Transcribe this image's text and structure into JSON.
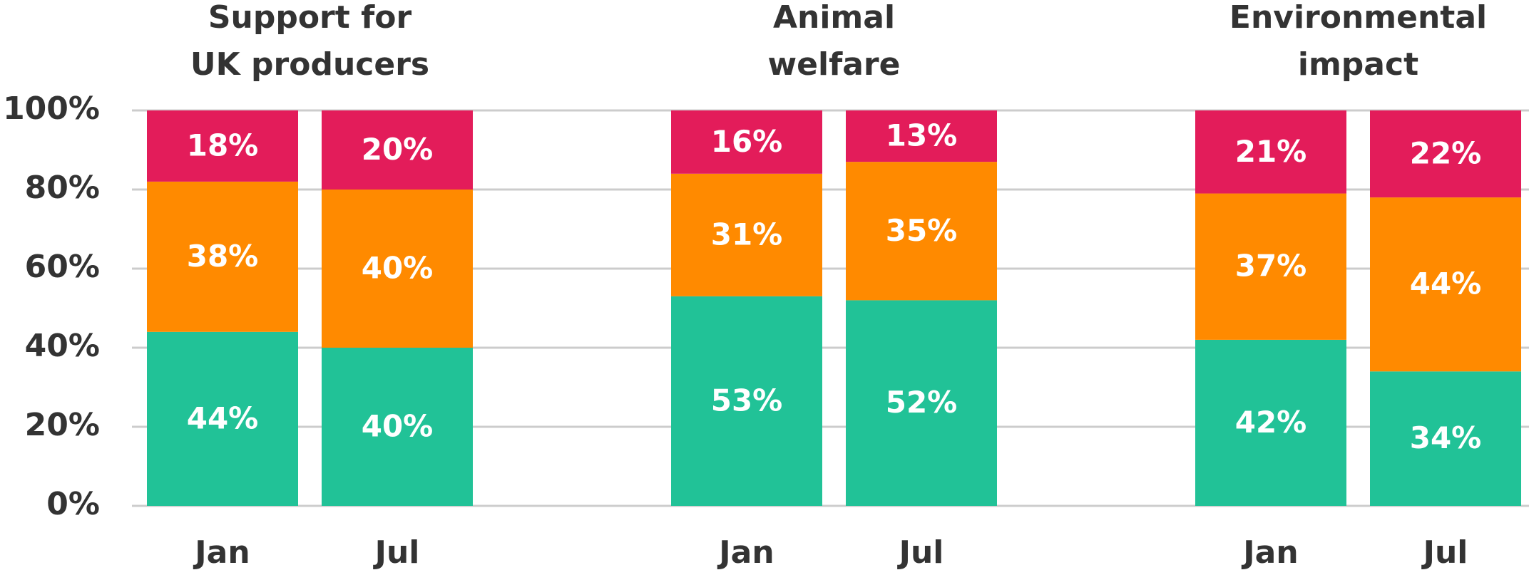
{
  "chart_data": [
    {
      "type": "bar",
      "stacked": true,
      "title": [
        "Support for",
        "UK producers"
      ],
      "categories": [
        "Jan",
        "Jul"
      ],
      "ylim": [
        0,
        100
      ],
      "yticks": [
        {
          "value": 0,
          "label": "0%"
        },
        {
          "value": 20,
          "label": "20%"
        },
        {
          "value": 40,
          "label": "40%"
        },
        {
          "value": 60,
          "label": "60%"
        },
        {
          "value": 80,
          "label": "80%"
        },
        {
          "value": 100,
          "label": "100%"
        }
      ],
      "grid": true,
      "series": [
        {
          "color": "#21c297",
          "values": [
            44,
            40
          ],
          "value_labels": [
            "44%",
            "40%"
          ]
        },
        {
          "color": "#ff8a00",
          "values": [
            38,
            40
          ],
          "value_labels": [
            "38%",
            "40%"
          ]
        },
        {
          "color": "#e31c5a",
          "values": [
            18,
            20
          ],
          "value_labels": [
            "18%",
            "20%"
          ]
        }
      ]
    },
    {
      "type": "bar",
      "stacked": true,
      "title": [
        "Animal",
        "welfare"
      ],
      "categories": [
        "Jan",
        "Jul"
      ],
      "ylim": [
        0,
        100
      ],
      "series": [
        {
          "color": "#21c297",
          "values": [
            53,
            52
          ],
          "value_labels": [
            "53%",
            "52%"
          ]
        },
        {
          "color": "#ff8a00",
          "values": [
            31,
            35
          ],
          "value_labels": [
            "31%",
            "35%"
          ]
        },
        {
          "color": "#e31c5a",
          "values": [
            16,
            13
          ],
          "value_labels": [
            "16%",
            "13%"
          ]
        }
      ]
    },
    {
      "type": "bar",
      "stacked": true,
      "title": [
        "Environmental",
        "impact"
      ],
      "categories": [
        "Jan",
        "Jul"
      ],
      "ylim": [
        0,
        100
      ],
      "series": [
        {
          "color": "#21c297",
          "values": [
            42,
            34
          ],
          "value_labels": [
            "42%",
            "34%"
          ]
        },
        {
          "color": "#ff8a00",
          "values": [
            37,
            44
          ],
          "value_labels": [
            "37%",
            "44%"
          ]
        },
        {
          "color": "#e31c5a",
          "values": [
            21,
            22
          ],
          "value_labels": [
            "21%",
            "22%"
          ]
        }
      ]
    }
  ]
}
